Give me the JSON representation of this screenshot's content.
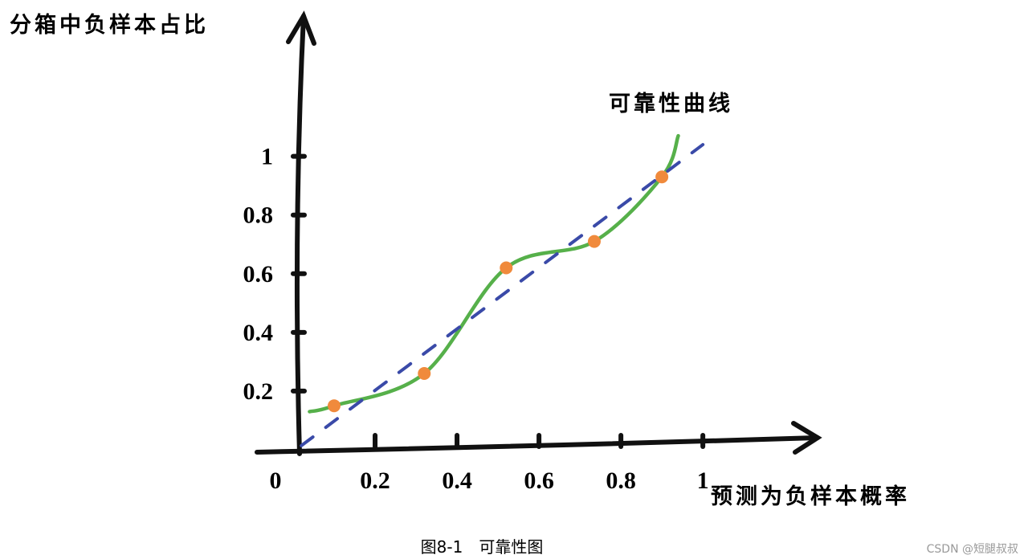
{
  "chart_data": {
    "type": "line",
    "y_label": "分箱中负样本占比",
    "x_label": "预测为负样本概率",
    "annotation": "可靠性曲线",
    "caption": "图8-1　可靠性图",
    "watermark": "CSDN @短腿叔叔",
    "xlim": [
      0,
      1.28
    ],
    "ylim": [
      0,
      1.5
    ],
    "xticks": [
      0,
      0.2,
      0.4,
      0.6,
      0.8,
      1
    ],
    "yticks": [
      0.2,
      0.4,
      0.6,
      0.8,
      1
    ],
    "series": [
      {
        "color": "#56b04a",
        "smooth": true,
        "x": [
          0.04,
          0.1,
          0.32,
          0.52,
          0.735,
          0.9,
          0.94
        ],
        "values": [
          0.13,
          0.15,
          0.26,
          0.62,
          0.71,
          0.93,
          1.07
        ]
      },
      {
        "color": "#3a4aa8",
        "dashed": true,
        "x": [
          0.02,
          1
        ],
        "values": [
          0.014,
          1.04
        ]
      }
    ],
    "points": {
      "color": "#f08a3c",
      "x": [
        0.1,
        0.32,
        0.52,
        0.735,
        0.9
      ],
      "values": [
        0.15,
        0.26,
        0.62,
        0.71,
        0.93
      ]
    }
  }
}
